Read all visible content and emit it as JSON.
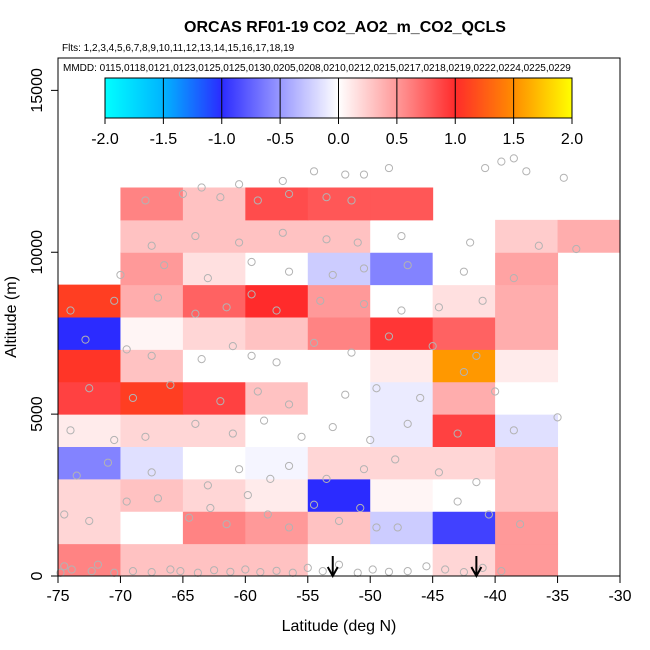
{
  "chart_data": {
    "type": "heatmap",
    "title": "ORCAS RF01-19 CO2_AO2_m_CO2_QCLS",
    "flights_text": "Flts: 1,2,3,4,5,6,7,8,9,10,11,12,13,14,15,16,17,18,19",
    "dates_text": "MMDD: 0115,0118,0121,0123,0125,0125,0130,0205,0208,0210,0212,0215,0217,0218,0219,0222,0224,0225,0229",
    "xlabel": "Latitude (deg N)",
    "ylabel": "Altitude (m)",
    "xlim": [
      -75,
      -30
    ],
    "ylim": [
      0,
      16000
    ],
    "x_ticks": [
      -75,
      -70,
      -65,
      -60,
      -55,
      -50,
      -45,
      -40,
      -35,
      -30
    ],
    "y_ticks": [
      0,
      5000,
      10000,
      15000
    ],
    "colorbar": {
      "min": -2.0,
      "max": 2.0,
      "ticks": [
        -2.0,
        -1.5,
        -1.0,
        -0.5,
        0.0,
        0.5,
        1.0,
        1.5,
        2.0
      ],
      "tick_labels": [
        "-2.0",
        "-1.5",
        "-1.0",
        "-0.5",
        "0.0",
        "0.5",
        "1.0",
        "1.5",
        "2.0"
      ]
    },
    "lat_bin_edges": [
      -75,
      -70,
      -65,
      -60,
      -55,
      -50,
      -45,
      -40,
      -35,
      -30
    ],
    "alt_bin_size": 1000,
    "cells": [
      {
        "lat": -75,
        "alt": 0,
        "v": 0.6
      },
      {
        "lat": -70,
        "alt": 0,
        "v": 0.3
      },
      {
        "lat": -65,
        "alt": 0,
        "v": 0.3
      },
      {
        "lat": -60,
        "alt": 0,
        "v": 0.3
      },
      {
        "lat": -55,
        "alt": 0,
        "v": 0.0
      },
      {
        "lat": -50,
        "alt": 0,
        "v": 0.0
      },
      {
        "lat": -45,
        "alt": 0,
        "v": 0.2
      },
      {
        "lat": -40,
        "alt": 0,
        "v": 0.5
      },
      {
        "lat": -75,
        "alt": 1000,
        "v": 0.2
      },
      {
        "lat": -70,
        "alt": 1000,
        "v": 0.0
      },
      {
        "lat": -65,
        "alt": 1000,
        "v": 0.6
      },
      {
        "lat": -60,
        "alt": 1000,
        "v": 0.5
      },
      {
        "lat": -55,
        "alt": 1000,
        "v": 0.3
      },
      {
        "lat": -50,
        "alt": 1000,
        "v": -0.25
      },
      {
        "lat": -45,
        "alt": 1000,
        "v": -0.9
      },
      {
        "lat": -40,
        "alt": 1000,
        "v": 0.5
      },
      {
        "lat": -75,
        "alt": 2000,
        "v": 0.2
      },
      {
        "lat": -70,
        "alt": 2000,
        "v": 0.3
      },
      {
        "lat": -65,
        "alt": 2000,
        "v": 0.2
      },
      {
        "lat": -60,
        "alt": 2000,
        "v": 0.1
      },
      {
        "lat": -55,
        "alt": 2000,
        "v": -1.0
      },
      {
        "lat": -50,
        "alt": 2000,
        "v": 0.05
      },
      {
        "lat": -45,
        "alt": 2000,
        "v": 0.0
      },
      {
        "lat": -40,
        "alt": 2000,
        "v": 0.3
      },
      {
        "lat": -75,
        "alt": 3000,
        "v": -0.6
      },
      {
        "lat": -70,
        "alt": 3000,
        "v": -0.15
      },
      {
        "lat": -65,
        "alt": 3000,
        "v": 0.0
      },
      {
        "lat": -60,
        "alt": 3000,
        "v": -0.05
      },
      {
        "lat": -55,
        "alt": 3000,
        "v": 0.2
      },
      {
        "lat": -50,
        "alt": 3000,
        "v": 0.2
      },
      {
        "lat": -45,
        "alt": 3000,
        "v": 0.2
      },
      {
        "lat": -40,
        "alt": 3000,
        "v": 0.3
      },
      {
        "lat": -75,
        "alt": 4000,
        "v": 0.1
      },
      {
        "lat": -70,
        "alt": 4000,
        "v": 0.2
      },
      {
        "lat": -65,
        "alt": 4000,
        "v": 0.2
      },
      {
        "lat": -60,
        "alt": 4000,
        "v": 0.0
      },
      {
        "lat": -55,
        "alt": 4000,
        "v": 0.0
      },
      {
        "lat": -50,
        "alt": 4000,
        "v": -0.1
      },
      {
        "lat": -45,
        "alt": 4000,
        "v": 0.9
      },
      {
        "lat": -40,
        "alt": 4000,
        "v": -0.15
      },
      {
        "lat": -75,
        "alt": 5000,
        "v": 0.9
      },
      {
        "lat": -70,
        "alt": 5000,
        "v": 1.1
      },
      {
        "lat": -65,
        "alt": 5000,
        "v": 0.9
      },
      {
        "lat": -60,
        "alt": 5000,
        "v": 0.3
      },
      {
        "lat": -55,
        "alt": 5000,
        "v": 0.0
      },
      {
        "lat": -50,
        "alt": 5000,
        "v": -0.1
      },
      {
        "lat": -45,
        "alt": 5000,
        "v": 0.4
      },
      {
        "lat": -40,
        "alt": 5000,
        "v": 0.0
      },
      {
        "lat": -75,
        "alt": 6000,
        "v": 1.05
      },
      {
        "lat": -70,
        "alt": 6000,
        "v": 0.3
      },
      {
        "lat": -65,
        "alt": 6000,
        "v": 0.0
      },
      {
        "lat": -60,
        "alt": 6000,
        "v": 0.0
      },
      {
        "lat": -55,
        "alt": 6000,
        "v": 0.0
      },
      {
        "lat": -50,
        "alt": 6000,
        "v": 0.1
      },
      {
        "lat": -45,
        "alt": 6000,
        "v": 1.55
      },
      {
        "lat": -40,
        "alt": 6000,
        "v": 0.1
      },
      {
        "lat": -75,
        "alt": 7000,
        "v": -1.0
      },
      {
        "lat": -70,
        "alt": 7000,
        "v": 0.05
      },
      {
        "lat": -65,
        "alt": 7000,
        "v": 0.2
      },
      {
        "lat": -60,
        "alt": 7000,
        "v": 0.3
      },
      {
        "lat": -55,
        "alt": 7000,
        "v": 0.6
      },
      {
        "lat": -50,
        "alt": 7000,
        "v": 0.95
      },
      {
        "lat": -45,
        "alt": 7000,
        "v": 0.75
      },
      {
        "lat": -40,
        "alt": 7000,
        "v": 0.4
      },
      {
        "lat": -75,
        "alt": 8000,
        "v": 1.1
      },
      {
        "lat": -70,
        "alt": 8000,
        "v": 0.4
      },
      {
        "lat": -65,
        "alt": 8000,
        "v": 0.75
      },
      {
        "lat": -60,
        "alt": 8000,
        "v": 1.0
      },
      {
        "lat": -55,
        "alt": 8000,
        "v": 0.5
      },
      {
        "lat": -50,
        "alt": 8000,
        "v": 0.0
      },
      {
        "lat": -45,
        "alt": 8000,
        "v": 0.15
      },
      {
        "lat": -40,
        "alt": 8000,
        "v": 0.4
      },
      {
        "lat": -70,
        "alt": 9000,
        "v": 0.5
      },
      {
        "lat": -65,
        "alt": 9000,
        "v": 0.15
      },
      {
        "lat": -60,
        "alt": 9000,
        "v": 0.0
      },
      {
        "lat": -55,
        "alt": 9000,
        "v": -0.25
      },
      {
        "lat": -50,
        "alt": 9000,
        "v": -0.6
      },
      {
        "lat": -45,
        "alt": 9000,
        "v": 0.0
      },
      {
        "lat": -40,
        "alt": 9000,
        "v": 0.45
      },
      {
        "lat": -70,
        "alt": 10000,
        "v": 0.3
      },
      {
        "lat": -65,
        "alt": 10000,
        "v": 0.3
      },
      {
        "lat": -60,
        "alt": 10000,
        "v": 0.3
      },
      {
        "lat": -55,
        "alt": 10000,
        "v": 0.3
      },
      {
        "lat": -50,
        "alt": 10000,
        "v": 0.0
      },
      {
        "lat": -45,
        "alt": 10000,
        "v": 0.0
      },
      {
        "lat": -40,
        "alt": 10000,
        "v": 0.25
      },
      {
        "lat": -35,
        "alt": 10000,
        "v": 0.4
      },
      {
        "lat": -70,
        "alt": 11000,
        "v": 0.6
      },
      {
        "lat": -65,
        "alt": 11000,
        "v": 0.3
      },
      {
        "lat": -60,
        "alt": 11000,
        "v": 0.85
      },
      {
        "lat": -55,
        "alt": 11000,
        "v": 0.8
      },
      {
        "lat": -50,
        "alt": 11000,
        "v": 0.8
      }
    ],
    "sample_points": [
      [
        -74.8,
        100
      ],
      [
        -74.5,
        300
      ],
      [
        -73.9,
        200
      ],
      [
        -72.3,
        150
      ],
      [
        -71.8,
        350
      ],
      [
        -70.5,
        100
      ],
      [
        -69.0,
        150
      ],
      [
        -67.5,
        120
      ],
      [
        -66.0,
        200
      ],
      [
        -65.2,
        150
      ],
      [
        -63.8,
        100
      ],
      [
        -62.5,
        180
      ],
      [
        -61.2,
        130
      ],
      [
        -60.0,
        200
      ],
      [
        -58.8,
        120
      ],
      [
        -57.5,
        160
      ],
      [
        -56.2,
        100
      ],
      [
        -55.0,
        250
      ],
      [
        -53.8,
        150
      ],
      [
        -52.5,
        350
      ],
      [
        -51.0,
        100
      ],
      [
        -49.8,
        200
      ],
      [
        -48.5,
        130
      ],
      [
        -47.0,
        150
      ],
      [
        -45.5,
        300
      ],
      [
        -44.0,
        200
      ],
      [
        -42.5,
        120
      ],
      [
        -41.0,
        250
      ],
      [
        -39.5,
        150
      ],
      [
        -74.5,
        1900
      ],
      [
        -72.5,
        1700
      ],
      [
        -69.5,
        2300
      ],
      [
        -67.0,
        2400
      ],
      [
        -64.5,
        1800
      ],
      [
        -62.8,
        2100
      ],
      [
        -61.5,
        1600
      ],
      [
        -59.8,
        2500
      ],
      [
        -58.2,
        1900
      ],
      [
        -56.5,
        1500
      ],
      [
        -54.5,
        2200
      ],
      [
        -52.5,
        1700
      ],
      [
        -50.8,
        2100
      ],
      [
        -49.5,
        1500
      ],
      [
        -47.8,
        1500
      ],
      [
        -43.0,
        2300
      ],
      [
        -40.5,
        1900
      ],
      [
        -38.0,
        1600
      ],
      [
        -73.5,
        3100
      ],
      [
        -71.0,
        3500
      ],
      [
        -67.5,
        3200
      ],
      [
        -63.0,
        2800
      ],
      [
        -60.5,
        3300
      ],
      [
        -58.0,
        3000
      ],
      [
        -56.5,
        3400
      ],
      [
        -53.5,
        3000
      ],
      [
        -50.5,
        3300
      ],
      [
        -48.0,
        3600
      ],
      [
        -44.5,
        3200
      ],
      [
        -41.5,
        2900
      ],
      [
        -74.0,
        4500
      ],
      [
        -70.5,
        4200
      ],
      [
        -68.0,
        4300
      ],
      [
        -64.0,
        4700
      ],
      [
        -61.0,
        4400
      ],
      [
        -58.5,
        4800
      ],
      [
        -55.5,
        4300
      ],
      [
        -53.0,
        4600
      ],
      [
        -50.0,
        4200
      ],
      [
        -47.0,
        4700
      ],
      [
        -43.0,
        4400
      ],
      [
        -38.5,
        4500
      ],
      [
        -35.0,
        4900
      ],
      [
        -72.5,
        5800
      ],
      [
        -69.0,
        5500
      ],
      [
        -66.0,
        5900
      ],
      [
        -62.0,
        5400
      ],
      [
        -59.0,
        5700
      ],
      [
        -56.5,
        5300
      ],
      [
        -52.0,
        5600
      ],
      [
        -49.5,
        5800
      ],
      [
        -46.0,
        5500
      ],
      [
        -42.5,
        6300
      ],
      [
        -40.0,
        5700
      ],
      [
        -72.8,
        7300
      ],
      [
        -69.5,
        7000
      ],
      [
        -67.5,
        6800
      ],
      [
        -63.5,
        6700
      ],
      [
        -61.0,
        7100
      ],
      [
        -59.5,
        6800
      ],
      [
        -57.5,
        6600
      ],
      [
        -54.5,
        7200
      ],
      [
        -51.5,
        6900
      ],
      [
        -48.5,
        7400
      ],
      [
        -45.0,
        7100
      ],
      [
        -41.5,
        6800
      ],
      [
        -74.0,
        8200
      ],
      [
        -70.5,
        8500
      ],
      [
        -67.0,
        8600
      ],
      [
        -64.0,
        8100
      ],
      [
        -61.5,
        8300
      ],
      [
        -59.5,
        8700
      ],
      [
        -57.5,
        8200
      ],
      [
        -54.0,
        8500
      ],
      [
        -50.5,
        8400
      ],
      [
        -47.5,
        8200
      ],
      [
        -44.5,
        8300
      ],
      [
        -41.0,
        8500
      ],
      [
        -70.0,
        9300
      ],
      [
        -66.5,
        9600
      ],
      [
        -63.0,
        9200
      ],
      [
        -59.5,
        9700
      ],
      [
        -56.5,
        9400
      ],
      [
        -53.0,
        9300
      ],
      [
        -50.5,
        9500
      ],
      [
        -47.0,
        9600
      ],
      [
        -42.5,
        9400
      ],
      [
        -38.5,
        9200
      ],
      [
        -67.5,
        10200
      ],
      [
        -64.0,
        10500
      ],
      [
        -60.5,
        10300
      ],
      [
        -57.0,
        10600
      ],
      [
        -53.5,
        10400
      ],
      [
        -51.0,
        10300
      ],
      [
        -47.5,
        10500
      ],
      [
        -42.0,
        10300
      ],
      [
        -36.5,
        10200
      ],
      [
        -33.5,
        10100
      ],
      [
        -68.0,
        11600
      ],
      [
        -65.0,
        11800
      ],
      [
        -62.0,
        11700
      ],
      [
        -59.0,
        11600
      ],
      [
        -56.5,
        11800
      ],
      [
        -53.5,
        11700
      ],
      [
        -51.5,
        11600
      ],
      [
        -63.5,
        12000
      ],
      [
        -60.5,
        12100
      ],
      [
        -57.0,
        12200
      ],
      [
        -54.5,
        12500
      ],
      [
        -52.0,
        12400
      ],
      [
        -50.5,
        12400
      ],
      [
        -48.5,
        12600
      ],
      [
        -39.5,
        12800
      ],
      [
        -38.5,
        12900
      ],
      [
        -37.5,
        12500
      ],
      [
        -34.5,
        12300
      ],
      [
        -40.8,
        12600
      ]
    ],
    "arrows": [
      {
        "lat": -53.0
      },
      {
        "lat": -41.5
      }
    ]
  }
}
